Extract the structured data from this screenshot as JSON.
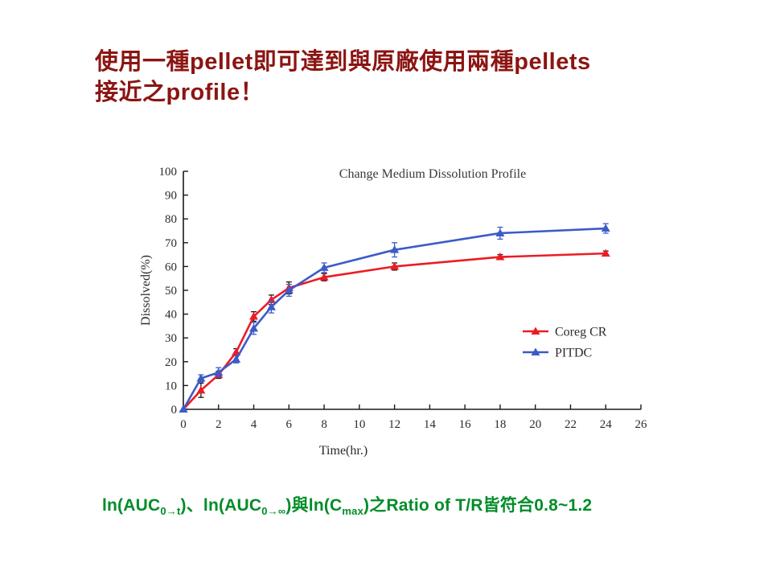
{
  "slide": {
    "title": {
      "line1": "使用一種pellet即可達到與原廠使用兩種pellets",
      "line2": "接近之profile！",
      "color": "#8B1512"
    },
    "footer": {
      "color": "#008C28",
      "segments": [
        {
          "text": "ln(AUC",
          "sub": false
        },
        {
          "text": "0→t",
          "sub": true
        },
        {
          "text": ")、ln(AUC",
          "sub": false
        },
        {
          "text": "0→∞",
          "sub": true
        },
        {
          "text": ")與ln(C",
          "sub": false
        },
        {
          "text": "max",
          "sub": true
        },
        {
          "text": ")之Ratio of T/R皆符合0.8~1.2",
          "sub": false
        }
      ]
    }
  },
  "chart_data": {
    "type": "line",
    "title": "Change Medium Dissolution Profile",
    "xlabel": "Time(hr.)",
    "ylabel": "Dissolved(%)",
    "x": [
      0,
      1,
      2,
      3,
      4,
      5,
      6,
      8,
      12,
      18,
      24
    ],
    "series": [
      {
        "name": "Coreg CR",
        "color": "#EC1C24",
        "error_color": "#1a1a1a",
        "values": [
          0,
          8,
          14.5,
          24,
          39,
          46,
          51,
          55.5,
          60,
          64,
          65.5
        ],
        "errors": [
          0,
          3,
          1.5,
          1.5,
          2,
          2,
          2.5,
          1.5,
          1.5,
          1,
          1
        ]
      },
      {
        "name": "PITDC",
        "color": "#3C5BC8",
        "error_color": "#3C5BC8",
        "values": [
          0,
          13,
          15.5,
          21,
          34,
          43,
          50,
          59.5,
          67,
          74,
          76
        ],
        "errors": [
          0,
          1.5,
          2,
          1.5,
          2.5,
          2.5,
          2.5,
          2,
          3,
          2.5,
          2
        ]
      }
    ],
    "xlim": [
      0,
      26
    ],
    "ylim": [
      0,
      100
    ],
    "xticks": [
      0,
      2,
      4,
      6,
      8,
      10,
      12,
      14,
      16,
      18,
      20,
      22,
      24,
      26
    ],
    "yticks": [
      0,
      10,
      20,
      30,
      40,
      50,
      60,
      70,
      80,
      90,
      100
    ],
    "grid": false,
    "marker": "triangle",
    "legend_position": "right-middle"
  }
}
